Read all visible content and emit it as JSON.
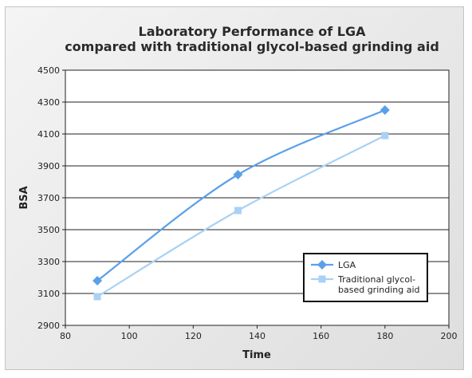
{
  "chart_data": {
    "type": "line",
    "title_lines": [
      "Laboratory Performance of LGA",
      "compared  with traditional glycol-based grinding aid"
    ],
    "xlabel": "Time",
    "ylabel": "BSA",
    "xlim": [
      80,
      200
    ],
    "ylim": [
      2900,
      4500
    ],
    "xticks": [
      80,
      100,
      120,
      140,
      160,
      180,
      200
    ],
    "yticks": [
      2900,
      3100,
      3300,
      3500,
      3700,
      3900,
      4100,
      4300,
      4500
    ],
    "grid": "horizontal",
    "legend_position": "bottom-right",
    "series": [
      {
        "name": "LGA",
        "legend_lines": [
          "LGA"
        ],
        "marker": "diamond",
        "color": "#5aa0e8",
        "x": [
          90,
          134,
          180
        ],
        "y": [
          3180,
          3845,
          4250
        ]
      },
      {
        "name": "Traditional glycol-based grinding aid",
        "legend_lines": [
          "Traditional glycol-",
          "based grinding aid"
        ],
        "marker": "square",
        "color": "#a9d1f5",
        "x": [
          90,
          134,
          180
        ],
        "y": [
          3080,
          3620,
          4090
        ]
      }
    ]
  }
}
